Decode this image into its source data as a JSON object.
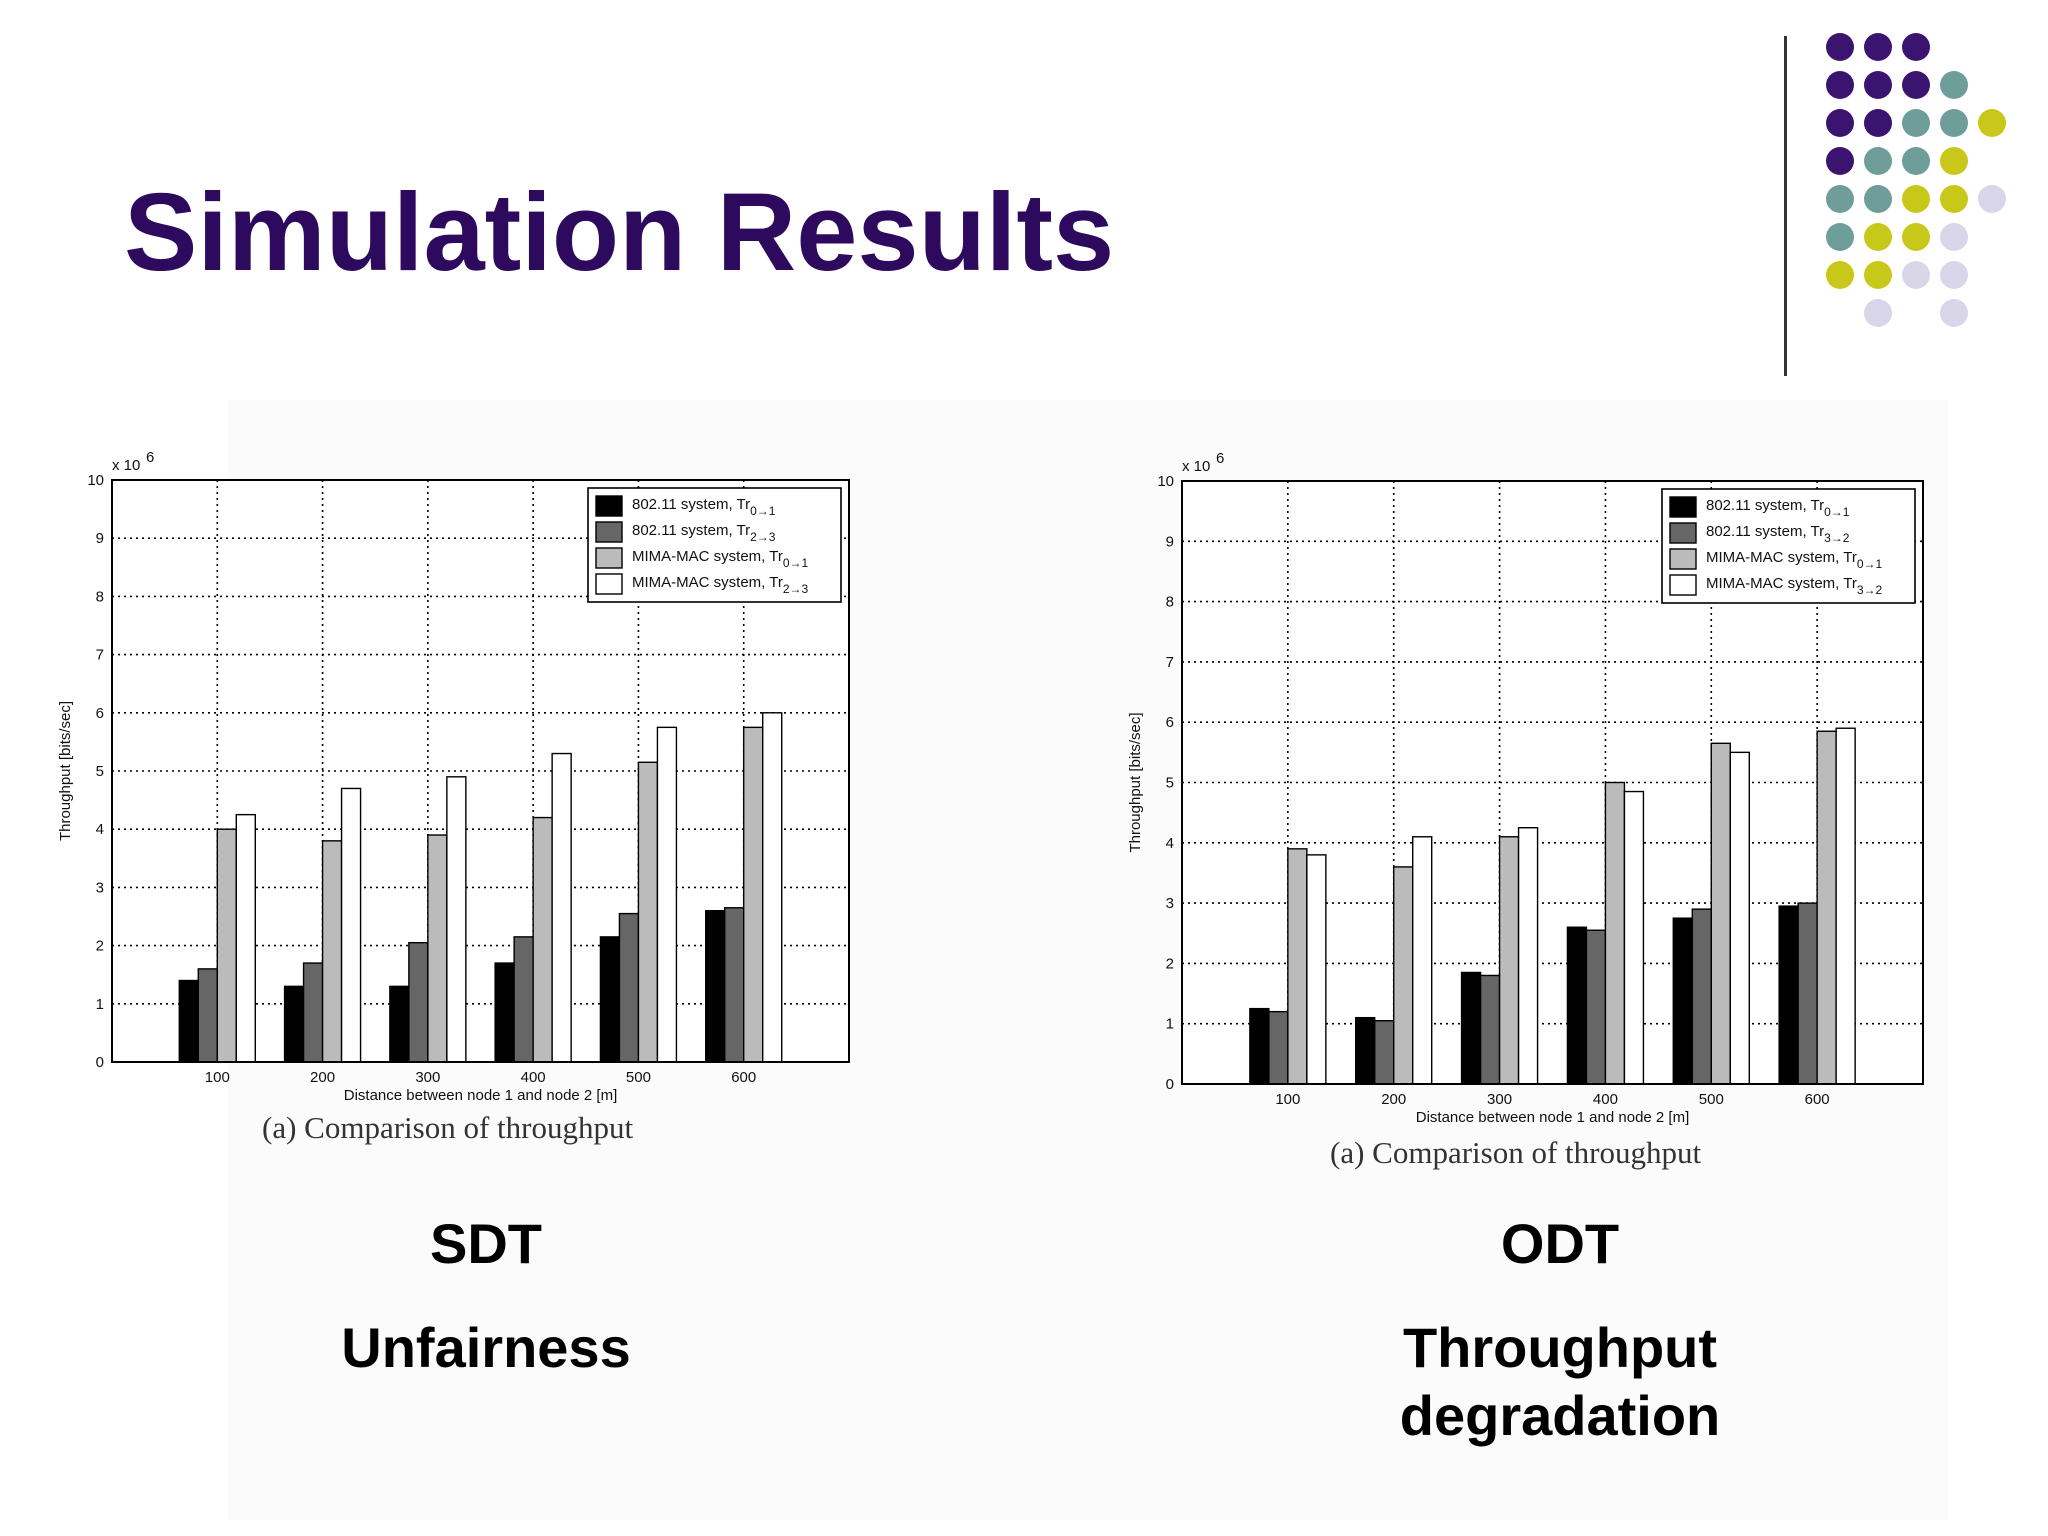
{
  "slide": {
    "title": "Simulation Results",
    "colors": {
      "title": "#2e0a5e",
      "purple": "#3b1470",
      "teal": "#6f9d9a",
      "yellow": "#c8c81a",
      "lavender": "#d9d6ea"
    }
  },
  "chart_data": [
    {
      "type": "bar",
      "categories": [
        "100",
        "200",
        "300",
        "400",
        "500",
        "600"
      ],
      "series": [
        {
          "name": "802.11 system, Tr0→1",
          "base": "802.11 system, Tr",
          "sub": "0→1",
          "color": "#000000",
          "values": [
            1.4,
            1.3,
            1.3,
            1.7,
            2.15,
            2.6
          ]
        },
        {
          "name": "802.11 system, Tr2→3",
          "base": "802.11 system, Tr",
          "sub": "2→3",
          "color": "#666666",
          "values": [
            1.6,
            1.7,
            2.05,
            2.15,
            2.55,
            2.65
          ]
        },
        {
          "name": "MIMA-MAC system, Tr0→1",
          "base": "MIMA-MAC system, Tr",
          "sub": "0→1",
          "color": "#bbbbbb",
          "values": [
            4.0,
            3.8,
            3.9,
            4.2,
            5.15,
            5.75
          ]
        },
        {
          "name": "MIMA-MAC system, Tr2→3",
          "base": "MIMA-MAC system, Tr",
          "sub": "2→3",
          "color": "#ffffff",
          "values": [
            4.25,
            4.7,
            4.9,
            5.3,
            5.75,
            6.0
          ]
        }
      ],
      "xlabel": "Distance between node 1 and node 2 [m]",
      "ylabel": "Throughput [bits/sec]",
      "scale_label": "x 10",
      "scale_exp": "6",
      "ylim": [
        0,
        10
      ],
      "yticks": [
        "0",
        "1",
        "2",
        "3",
        "4",
        "5",
        "6",
        "7",
        "8",
        "9",
        "10"
      ],
      "grid": true,
      "legend": "top-right",
      "caption": "(a) Comparison of throughput",
      "label_lines": [
        "SDT",
        "Unfairness"
      ]
    },
    {
      "type": "bar",
      "categories": [
        "100",
        "200",
        "300",
        "400",
        "500",
        "600"
      ],
      "series": [
        {
          "name": "802.11 system, Tr0→1",
          "base": "802.11 system, Tr",
          "sub": "0→1",
          "color": "#000000",
          "values": [
            1.25,
            1.1,
            1.85,
            2.6,
            2.75,
            2.95
          ]
        },
        {
          "name": "802.11 system, Tr3→2",
          "base": "802.11 system, Tr",
          "sub": "3→2",
          "color": "#666666",
          "values": [
            1.2,
            1.05,
            1.8,
            2.55,
            2.9,
            3.0
          ]
        },
        {
          "name": "MIMA-MAC system, Tr0→1",
          "base": "MIMA-MAC system, Tr",
          "sub": "0→1",
          "color": "#bbbbbb",
          "values": [
            3.9,
            3.6,
            4.1,
            5.0,
            5.65,
            5.85
          ]
        },
        {
          "name": "MIMA-MAC system, Tr3→2",
          "base": "MIMA-MAC system, Tr",
          "sub": "3→2",
          "color": "#ffffff",
          "values": [
            3.8,
            4.1,
            4.25,
            4.85,
            5.5,
            5.9
          ]
        }
      ],
      "xlabel": "Distance between node 1 and node 2 [m]",
      "ylabel": "Throughput [bits/sec]",
      "scale_label": "x 10",
      "scale_exp": "6",
      "ylim": [
        0,
        10
      ],
      "yticks": [
        "0",
        "1",
        "2",
        "3",
        "4",
        "5",
        "6",
        "7",
        "8",
        "9",
        "10"
      ],
      "grid": true,
      "legend": "top-right",
      "caption": "(a) Comparison of throughput",
      "label_lines": [
        "ODT",
        "Throughput",
        "degradation"
      ]
    }
  ]
}
